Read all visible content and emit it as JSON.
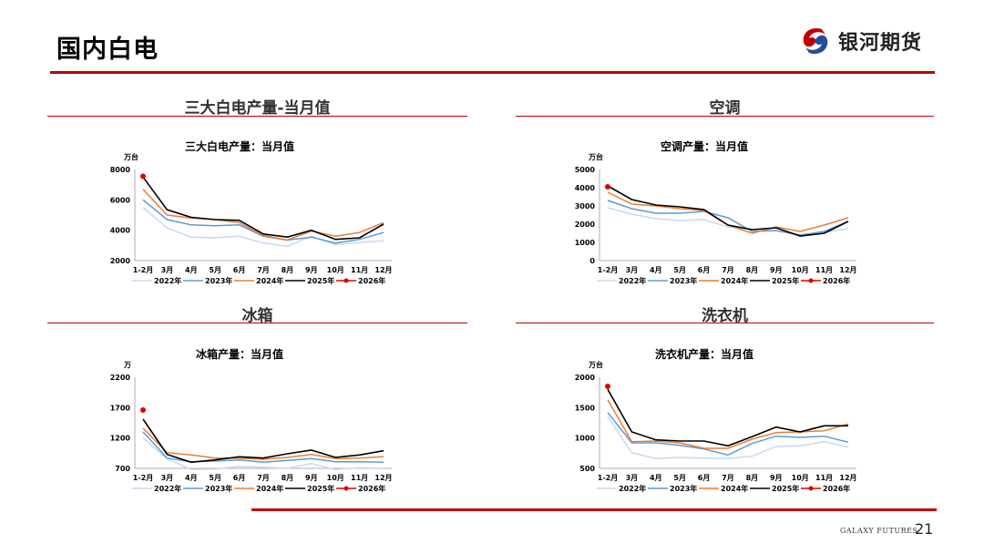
{
  "page": {
    "title": "国内白电",
    "logo_text": "银河期货",
    "footer_brand": "GALAXY FUTURES",
    "page_number": "21"
  },
  "sections": [
    {
      "heading": "三大白电产量-当月值"
    },
    {
      "heading": "空调"
    },
    {
      "heading": "冰箱"
    },
    {
      "heading": "洗衣机"
    }
  ],
  "colors": {
    "accent": "#c00000",
    "2022年": "#c6d9f0",
    "2023年": "#5b9bd5",
    "2024年": "#ed7d31",
    "2025年": "#000000",
    "2026年": "#e00000"
  },
  "chart_data": [
    {
      "type": "line",
      "title": "三大白电产量：当月值",
      "unit": "万台",
      "categories": [
        "1-2月",
        "3月",
        "4月",
        "5月",
        "6月",
        "7月",
        "8月",
        "9月",
        "10月",
        "11月",
        "12月"
      ],
      "ylim": [
        2000,
        8000
      ],
      "yticks": [
        2000,
        4000,
        6000,
        8000
      ],
      "legend_position": "bottom",
      "series": [
        {
          "name": "2022年",
          "values": [
            5500,
            4150,
            3550,
            3500,
            3600,
            3150,
            2950,
            3600,
            3050,
            3200,
            3300
          ]
        },
        {
          "name": "2023年",
          "values": [
            6000,
            4700,
            4350,
            4300,
            4350,
            3600,
            3350,
            3550,
            3150,
            3400,
            3850
          ]
        },
        {
          "name": "2024年",
          "values": [
            6700,
            5000,
            4800,
            4700,
            4500,
            3650,
            3350,
            3950,
            3600,
            3850,
            4500
          ]
        },
        {
          "name": "2025年",
          "values": [
            7500,
            5350,
            4850,
            4700,
            4650,
            3750,
            3550,
            4000,
            3400,
            3500,
            4400
          ]
        },
        {
          "name": "2026年",
          "values": [
            7550,
            null,
            null,
            null,
            null,
            null,
            null,
            null,
            null,
            null,
            null
          ]
        }
      ]
    },
    {
      "type": "line",
      "title": "空调产量：当月值",
      "unit": "万台",
      "categories": [
        "1-2月",
        "3月",
        "4月",
        "5月",
        "6月",
        "7月",
        "8月",
        "9月",
        "10月",
        "11月",
        "12月"
      ],
      "ylim": [
        0,
        5000
      ],
      "yticks": [
        0,
        1000,
        2000,
        3000,
        4000,
        5000
      ],
      "legend_position": "bottom",
      "series": [
        {
          "name": "2022年",
          "values": [
            2900,
            2550,
            2300,
            2200,
            2250,
            1850,
            1700,
            1650,
            1400,
            1550,
            1750
          ]
        },
        {
          "name": "2023年",
          "values": [
            3300,
            2850,
            2600,
            2600,
            2700,
            2350,
            1600,
            1650,
            1400,
            1600,
            2150
          ]
        },
        {
          "name": "2024年",
          "values": [
            3750,
            3100,
            3000,
            2850,
            2750,
            1950,
            1500,
            1850,
            1600,
            1950,
            2350
          ]
        },
        {
          "name": "2025年",
          "values": [
            4100,
            3350,
            3050,
            2950,
            2800,
            1950,
            1700,
            1800,
            1350,
            1500,
            2150
          ]
        },
        {
          "name": "2026年",
          "values": [
            4050,
            null,
            null,
            null,
            null,
            null,
            null,
            null,
            null,
            null,
            null
          ]
        }
      ]
    },
    {
      "type": "line",
      "title": "冰箱产量：当月值",
      "unit": "万",
      "categories": [
        "1-2月",
        "3月",
        "4月",
        "5月",
        "6月",
        "7月",
        "8月",
        "9月",
        "10月",
        "11月",
        "12月"
      ],
      "ylim": [
        700,
        2200
      ],
      "yticks": [
        700,
        1200,
        1700,
        2200
      ],
      "legend_position": "bottom",
      "series": [
        {
          "name": "2022年",
          "values": [
            1200,
            860,
            680,
            690,
            730,
            720,
            700,
            780,
            680,
            710,
            700
          ]
        },
        {
          "name": "2023年",
          "values": [
            1300,
            870,
            810,
            820,
            840,
            800,
            830,
            860,
            810,
            810,
            800
          ]
        },
        {
          "name": "2024年",
          "values": [
            1360,
            960,
            920,
            870,
            870,
            850,
            880,
            930,
            860,
            870,
            890
          ]
        },
        {
          "name": "2025年",
          "values": [
            1510,
            930,
            800,
            840,
            890,
            870,
            940,
            1000,
            880,
            920,
            990
          ]
        },
        {
          "name": "2026年",
          "values": [
            1660,
            null,
            null,
            null,
            null,
            null,
            null,
            null,
            null,
            null,
            null
          ]
        }
      ]
    },
    {
      "type": "line",
      "title": "洗衣机产量：当月值",
      "unit": "万台",
      "categories": [
        "1-2月",
        "3月",
        "4月",
        "5月",
        "6月",
        "7月",
        "8月",
        "9月",
        "10月",
        "11月",
        "12月"
      ],
      "ylim": [
        500,
        2000
      ],
      "yticks": [
        500,
        1000,
        1500,
        2000
      ],
      "legend_position": "bottom",
      "series": [
        {
          "name": "2022年",
          "values": [
            1350,
            760,
            660,
            680,
            670,
            660,
            700,
            860,
            870,
            940,
            850
          ]
        },
        {
          "name": "2023年",
          "values": [
            1420,
            920,
            920,
            880,
            820,
            720,
            910,
            1030,
            1010,
            1030,
            930
          ]
        },
        {
          "name": "2024年",
          "values": [
            1630,
            940,
            950,
            920,
            830,
            830,
            980,
            1090,
            1100,
            1120,
            1230
          ]
        },
        {
          "name": "2025年",
          "values": [
            1800,
            1100,
            970,
            950,
            950,
            870,
            1020,
            1180,
            1100,
            1200,
            1200
          ]
        },
        {
          "name": "2026年",
          "values": [
            1850,
            null,
            null,
            null,
            null,
            null,
            null,
            null,
            null,
            null,
            null
          ]
        }
      ]
    }
  ]
}
